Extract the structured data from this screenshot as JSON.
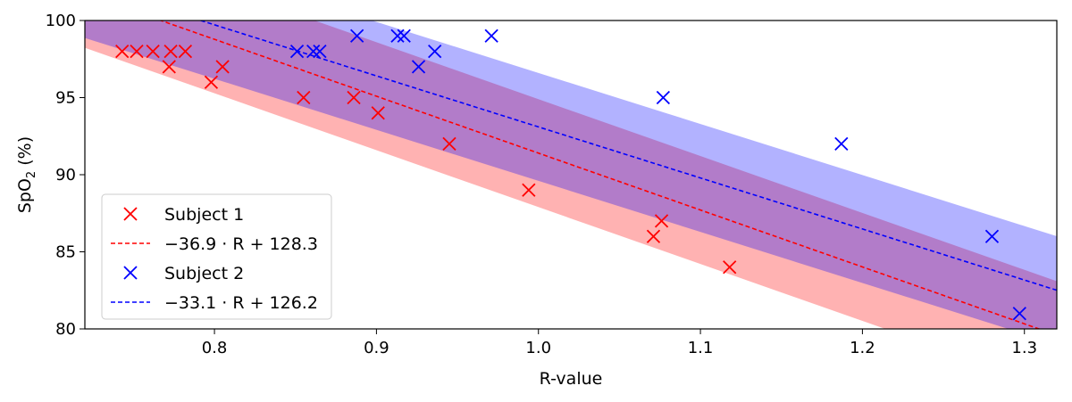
{
  "chart_data": {
    "type": "scatter",
    "xlabel": "R-value",
    "ylabel": {
      "main": "SpO",
      "sub": "2",
      "unit": " (%)"
    },
    "xlim": [
      0.72,
      1.32
    ],
    "ylim": [
      80,
      100
    ],
    "xticks": [
      {
        "value": 0.8,
        "label": "0.8"
      },
      {
        "value": 0.9,
        "label": "0.9"
      },
      {
        "value": 1.0,
        "label": "1.0"
      },
      {
        "value": 1.1,
        "label": "1.1"
      },
      {
        "value": 1.2,
        "label": "1.2"
      },
      {
        "value": 1.3,
        "label": "1.3"
      }
    ],
    "yticks": [
      {
        "value": 80,
        "label": "80"
      },
      {
        "value": 85,
        "label": "85"
      },
      {
        "value": 90,
        "label": "90"
      },
      {
        "value": 95,
        "label": "95"
      },
      {
        "value": 100,
        "label": "100"
      }
    ],
    "grid": false,
    "legend_position": "lower-left",
    "series": [
      {
        "name": "Subject 1",
        "color": "#ff0000",
        "band_color": "#ff0000",
        "marker": "x",
        "points": [
          [
            0.743,
            98
          ],
          [
            0.752,
            98
          ],
          [
            0.762,
            98
          ],
          [
            0.773,
            98
          ],
          [
            0.782,
            98
          ],
          [
            0.772,
            97
          ],
          [
            0.805,
            97
          ],
          [
            0.798,
            96
          ],
          [
            0.855,
            95
          ],
          [
            0.886,
            95
          ],
          [
            0.901,
            94
          ],
          [
            0.945,
            92
          ],
          [
            0.994,
            89
          ],
          [
            1.076,
            87
          ],
          [
            1.071,
            86
          ],
          [
            1.118,
            84
          ]
        ],
        "fit": {
          "label": "−36.9 · R + 128.3",
          "slope": -36.9,
          "intercept": 128.3,
          "band": 3.5
        }
      },
      {
        "name": "Subject 2",
        "color": "#0000ff",
        "band_color": "#0000ff",
        "marker": "x",
        "points": [
          [
            0.851,
            98
          ],
          [
            0.861,
            98
          ],
          [
            0.865,
            98
          ],
          [
            0.888,
            99
          ],
          [
            0.913,
            99
          ],
          [
            0.917,
            99
          ],
          [
            0.936,
            98
          ],
          [
            0.926,
            97
          ],
          [
            0.971,
            99
          ],
          [
            1.077,
            95
          ],
          [
            1.187,
            92
          ],
          [
            1.28,
            86
          ],
          [
            1.297,
            81
          ]
        ],
        "fit": {
          "label": "−33.1 · R + 126.2",
          "slope": -33.1,
          "intercept": 126.2,
          "band": 3.5
        }
      }
    ]
  }
}
